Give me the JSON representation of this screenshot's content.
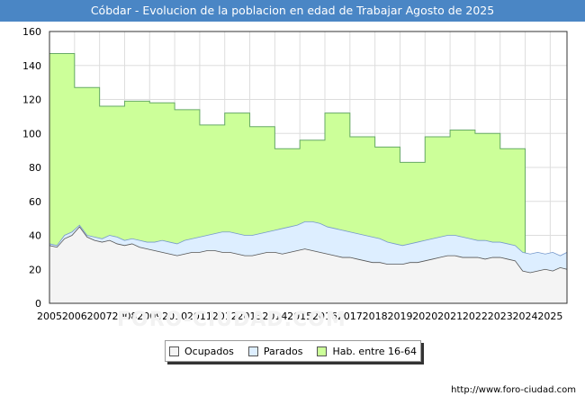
{
  "title": "Cóbdar - Evolucion de la poblacion en edad de Trabajar Agosto de 2025",
  "footer_url": "http://www.foro-ciudad.com",
  "watermark": "FORO-CIUDAD.COM",
  "chart_data": {
    "type": "area",
    "title": "Cóbdar - Evolucion de la poblacion en edad de Trabajar Agosto de 2025",
    "xlabel": "",
    "ylabel": "",
    "xlim": [
      2005,
      2025.67
    ],
    "ylim": [
      0,
      160
    ],
    "y_ticks": [
      0,
      20,
      40,
      60,
      80,
      100,
      120,
      140,
      160
    ],
    "x_ticks": [
      "2005",
      "2006",
      "2007",
      "2008",
      "2009",
      "2010",
      "2011",
      "2012",
      "2013",
      "2014",
      "2015",
      "2016",
      "2017",
      "2018",
      "2019",
      "2020",
      "2021",
      "2022",
      "2023",
      "2024",
      "2025"
    ],
    "grid": true,
    "legend_position": "bottom",
    "series": [
      {
        "name": "Hab. entre 16-64",
        "color": "#ccff99",
        "stroke": "#66aa66",
        "step": true,
        "x": [
          2005,
          2006,
          2007,
          2008,
          2009,
          2010,
          2011,
          2012,
          2013,
          2014,
          2015,
          2016,
          2017,
          2018,
          2019,
          2020,
          2021,
          2022,
          2023
        ],
        "values": [
          147,
          127,
          116,
          119,
          118,
          114,
          105,
          112,
          104,
          91,
          96,
          112,
          98,
          92,
          83,
          98,
          102,
          100,
          91
        ]
      },
      {
        "name": "Parados",
        "color": "#ddeeff",
        "stroke": "#7799cc",
        "points": [
          [
            2005,
            35
          ],
          [
            2005.3,
            34
          ],
          [
            2005.6,
            40
          ],
          [
            2005.9,
            42
          ],
          [
            2006.2,
            46
          ],
          [
            2006.5,
            40
          ],
          [
            2006.8,
            39
          ],
          [
            2007.1,
            38
          ],
          [
            2007.4,
            40
          ],
          [
            2007.7,
            39
          ],
          [
            2008.0,
            37
          ],
          [
            2008.3,
            38
          ],
          [
            2008.6,
            37
          ],
          [
            2008.9,
            36
          ],
          [
            2009.2,
            36
          ],
          [
            2009.5,
            37
          ],
          [
            2009.8,
            36
          ],
          [
            2010.1,
            35
          ],
          [
            2010.4,
            37
          ],
          [
            2010.7,
            38
          ],
          [
            2011.0,
            39
          ],
          [
            2011.3,
            40
          ],
          [
            2011.6,
            41
          ],
          [
            2011.9,
            42
          ],
          [
            2012.2,
            42
          ],
          [
            2012.5,
            41
          ],
          [
            2012.8,
            40
          ],
          [
            2013.1,
            40
          ],
          [
            2013.4,
            41
          ],
          [
            2013.7,
            42
          ],
          [
            2014.0,
            43
          ],
          [
            2014.3,
            44
          ],
          [
            2014.6,
            45
          ],
          [
            2014.9,
            46
          ],
          [
            2015.2,
            48
          ],
          [
            2015.5,
            48
          ],
          [
            2015.8,
            47
          ],
          [
            2016.1,
            45
          ],
          [
            2016.4,
            44
          ],
          [
            2016.7,
            43
          ],
          [
            2017.0,
            42
          ],
          [
            2017.3,
            41
          ],
          [
            2017.6,
            40
          ],
          [
            2017.9,
            39
          ],
          [
            2018.2,
            38
          ],
          [
            2018.5,
            36
          ],
          [
            2018.8,
            35
          ],
          [
            2019.1,
            34
          ],
          [
            2019.4,
            35
          ],
          [
            2019.7,
            36
          ],
          [
            2020.0,
            37
          ],
          [
            2020.3,
            38
          ],
          [
            2020.6,
            39
          ],
          [
            2020.9,
            40
          ],
          [
            2021.2,
            40
          ],
          [
            2021.5,
            39
          ],
          [
            2021.8,
            38
          ],
          [
            2022.1,
            37
          ],
          [
            2022.4,
            37
          ],
          [
            2022.7,
            36
          ],
          [
            2023.0,
            36
          ],
          [
            2023.3,
            35
          ],
          [
            2023.6,
            34
          ],
          [
            2023.9,
            30
          ],
          [
            2024.2,
            29
          ],
          [
            2024.5,
            30
          ],
          [
            2024.8,
            29
          ],
          [
            2025.1,
            30
          ],
          [
            2025.4,
            28
          ],
          [
            2025.67,
            30
          ]
        ]
      },
      {
        "name": "Ocupados",
        "color": "#f4f4f4",
        "stroke": "#555555",
        "points": [
          [
            2005,
            34
          ],
          [
            2005.3,
            33
          ],
          [
            2005.6,
            38
          ],
          [
            2005.9,
            40
          ],
          [
            2006.2,
            45
          ],
          [
            2006.5,
            39
          ],
          [
            2006.8,
            37
          ],
          [
            2007.1,
            36
          ],
          [
            2007.4,
            37
          ],
          [
            2007.7,
            35
          ],
          [
            2008.0,
            34
          ],
          [
            2008.3,
            35
          ],
          [
            2008.6,
            33
          ],
          [
            2008.9,
            32
          ],
          [
            2009.2,
            31
          ],
          [
            2009.5,
            30
          ],
          [
            2009.8,
            29
          ],
          [
            2010.1,
            28
          ],
          [
            2010.4,
            29
          ],
          [
            2010.7,
            30
          ],
          [
            2011.0,
            30
          ],
          [
            2011.3,
            31
          ],
          [
            2011.6,
            31
          ],
          [
            2011.9,
            30
          ],
          [
            2012.2,
            30
          ],
          [
            2012.5,
            29
          ],
          [
            2012.8,
            28
          ],
          [
            2013.1,
            28
          ],
          [
            2013.4,
            29
          ],
          [
            2013.7,
            30
          ],
          [
            2014.0,
            30
          ],
          [
            2014.3,
            29
          ],
          [
            2014.6,
            30
          ],
          [
            2014.9,
            31
          ],
          [
            2015.2,
            32
          ],
          [
            2015.5,
            31
          ],
          [
            2015.8,
            30
          ],
          [
            2016.1,
            29
          ],
          [
            2016.4,
            28
          ],
          [
            2016.7,
            27
          ],
          [
            2017.0,
            27
          ],
          [
            2017.3,
            26
          ],
          [
            2017.6,
            25
          ],
          [
            2017.9,
            24
          ],
          [
            2018.2,
            24
          ],
          [
            2018.5,
            23
          ],
          [
            2018.8,
            23
          ],
          [
            2019.1,
            23
          ],
          [
            2019.4,
            24
          ],
          [
            2019.7,
            24
          ],
          [
            2020.0,
            25
          ],
          [
            2020.3,
            26
          ],
          [
            2020.6,
            27
          ],
          [
            2020.9,
            28
          ],
          [
            2021.2,
            28
          ],
          [
            2021.5,
            27
          ],
          [
            2021.8,
            27
          ],
          [
            2022.1,
            27
          ],
          [
            2022.4,
            26
          ],
          [
            2022.7,
            27
          ],
          [
            2023.0,
            27
          ],
          [
            2023.3,
            26
          ],
          [
            2023.6,
            25
          ],
          [
            2023.9,
            19
          ],
          [
            2024.2,
            18
          ],
          [
            2024.5,
            19
          ],
          [
            2024.8,
            20
          ],
          [
            2025.1,
            19
          ],
          [
            2025.4,
            21
          ],
          [
            2025.67,
            20
          ]
        ]
      }
    ]
  },
  "legend": {
    "items": [
      {
        "label": "Ocupados",
        "color": "#f4f4f4"
      },
      {
        "label": "Parados",
        "color": "#ddeeff"
      },
      {
        "label": "Hab. entre 16-64",
        "color": "#ccff99"
      }
    ]
  }
}
